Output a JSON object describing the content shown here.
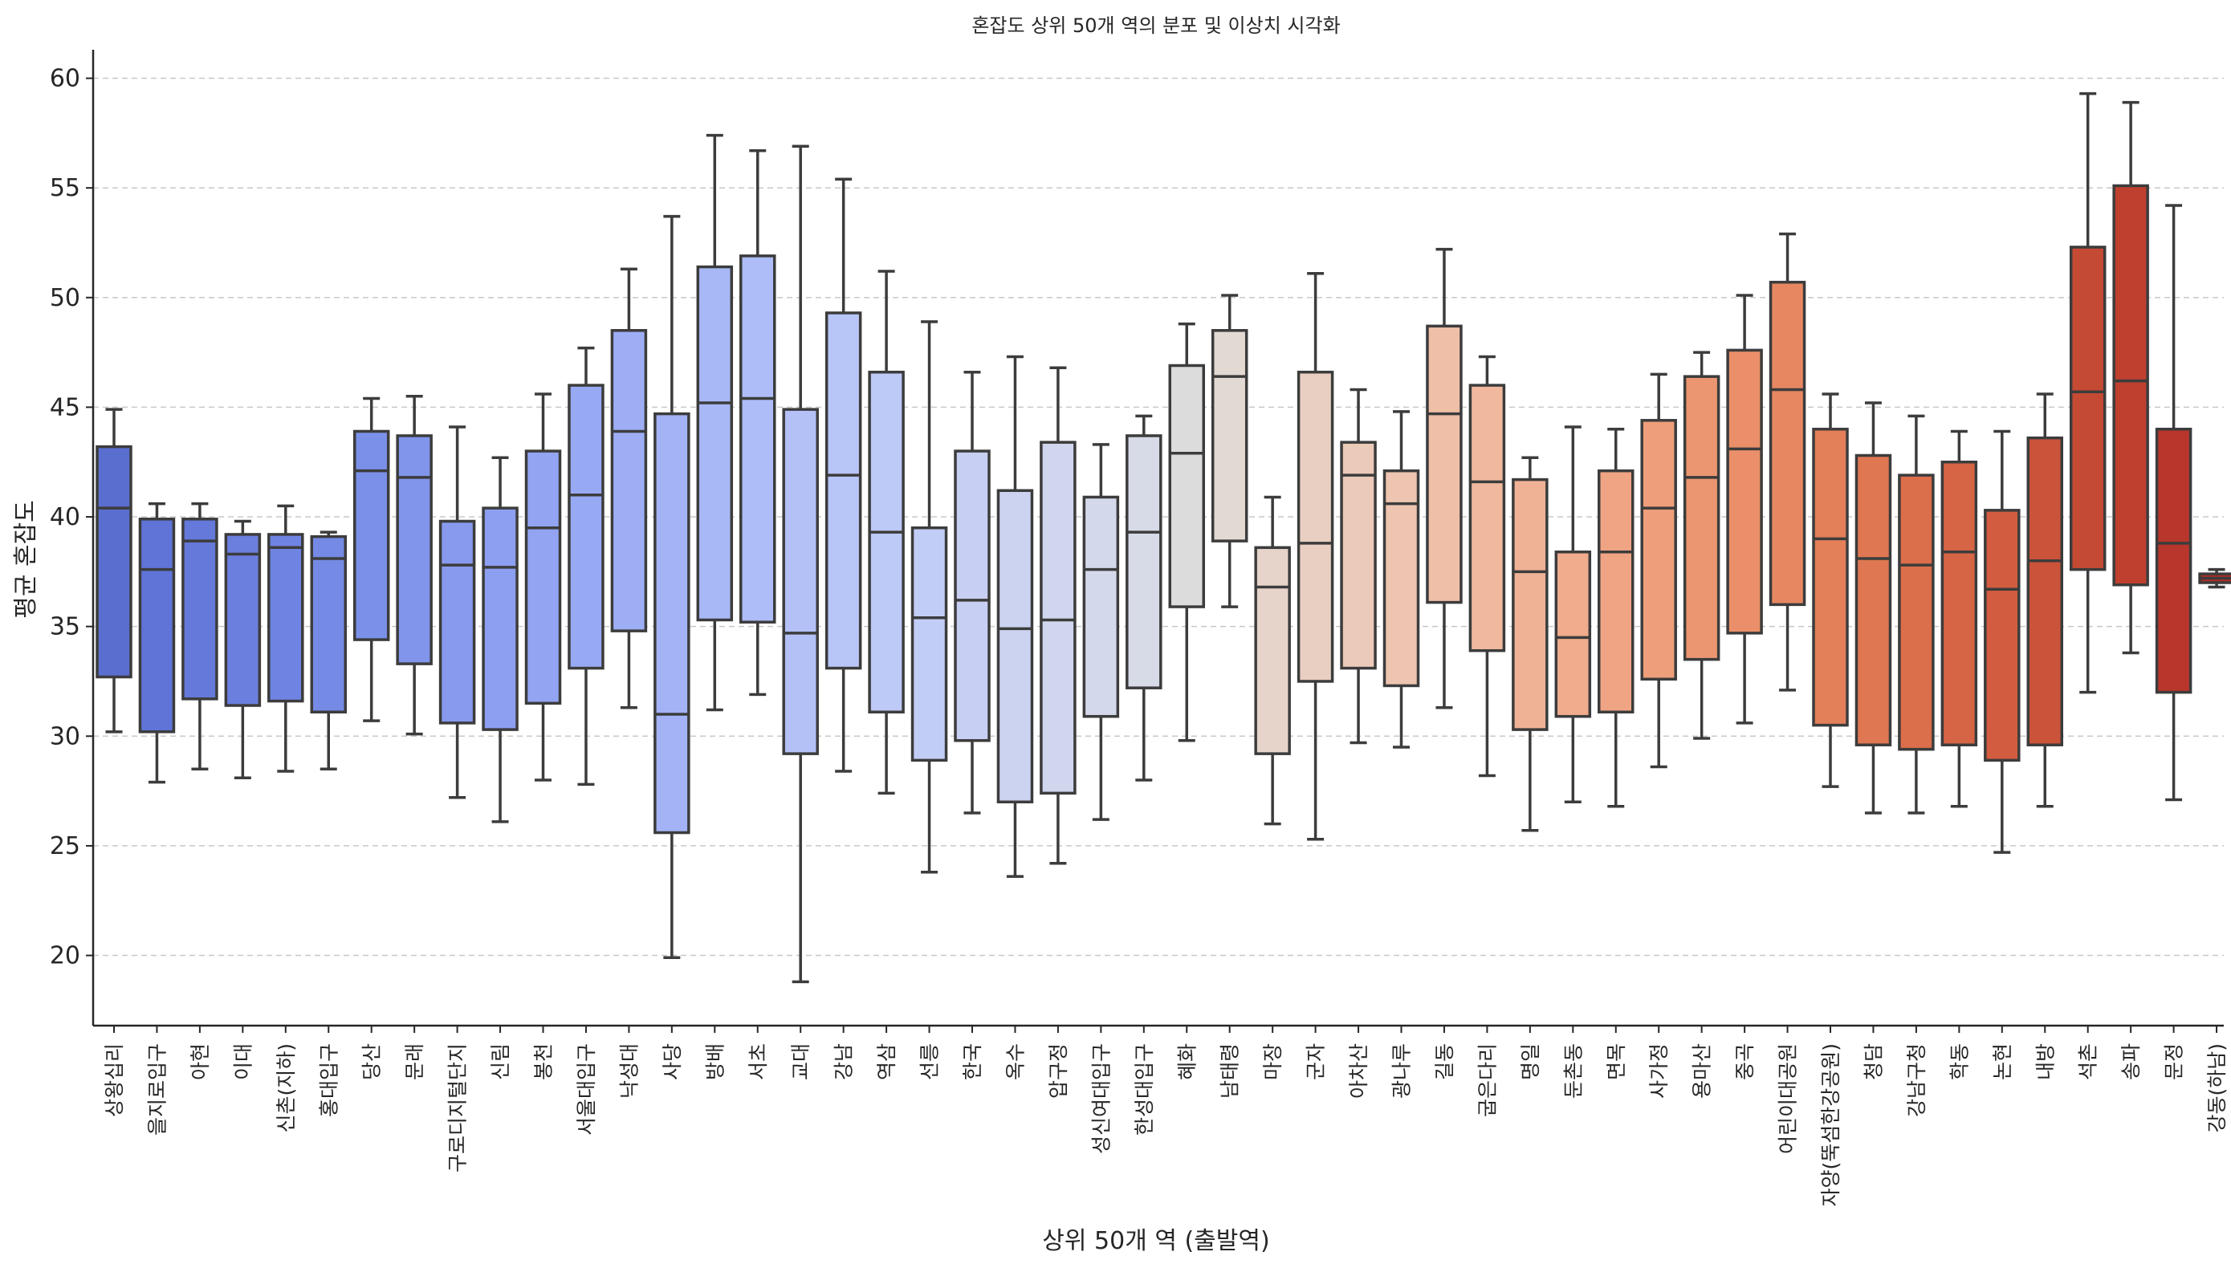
{
  "chart_data": {
    "type": "box",
    "title": "혼잡도 상위 50개 역의 분포 및 이상치 시각화",
    "xlabel": "상위 50개 역 (출발역)",
    "ylabel": "평균 혼잡도",
    "ylim": [
      16.8,
      61.3
    ],
    "yticks": [
      20,
      25,
      30,
      35,
      40,
      45,
      50,
      55,
      60
    ],
    "grid": "y-dashed",
    "palette": "coolwarm",
    "series": [
      {
        "name": "상왕십리",
        "whislo": 30.2,
        "q1": 32.7,
        "med": 40.4,
        "q3": 43.2,
        "whishi": 44.9,
        "color": "#5a6ed0"
      },
      {
        "name": "을지로입구",
        "whislo": 27.9,
        "q1": 30.2,
        "med": 37.6,
        "q3": 39.9,
        "whishi": 40.6,
        "color": "#5f74d6"
      },
      {
        "name": "아현",
        "whislo": 28.5,
        "q1": 31.7,
        "med": 38.9,
        "q3": 39.9,
        "whishi": 40.6,
        "color": "#6479da"
      },
      {
        "name": "이대",
        "whislo": 28.1,
        "q1": 31.4,
        "med": 38.3,
        "q3": 39.2,
        "whishi": 39.8,
        "color": "#6a7fde"
      },
      {
        "name": "신촌(지하)",
        "whislo": 28.4,
        "q1": 31.6,
        "med": 38.6,
        "q3": 39.2,
        "whishi": 40.5,
        "color": "#6f84e2"
      },
      {
        "name": "홍대입구",
        "whislo": 28.5,
        "q1": 31.1,
        "med": 38.1,
        "q3": 39.1,
        "whishi": 39.3,
        "color": "#758ae5"
      },
      {
        "name": "당산",
        "whislo": 30.7,
        "q1": 34.4,
        "med": 42.1,
        "q3": 43.9,
        "whishi": 45.4,
        "color": "#7b90e8"
      },
      {
        "name": "문래",
        "whislo": 30.1,
        "q1": 33.3,
        "med": 41.8,
        "q3": 43.7,
        "whishi": 45.5,
        "color": "#8195eb"
      },
      {
        "name": "구로디지털단지",
        "whislo": 27.2,
        "q1": 30.6,
        "med": 37.8,
        "q3": 39.8,
        "whishi": 44.1,
        "color": "#879aee"
      },
      {
        "name": "신림",
        "whislo": 26.1,
        "q1": 30.3,
        "med": 37.7,
        "q3": 40.4,
        "whishi": 42.7,
        "color": "#8c9ff0"
      },
      {
        "name": "봉천",
        "whislo": 28.0,
        "q1": 31.5,
        "med": 39.5,
        "q3": 43.0,
        "whishi": 45.6,
        "color": "#92a4f2"
      },
      {
        "name": "서울대입구",
        "whislo": 27.8,
        "q1": 33.1,
        "med": 41.0,
        "q3": 46.0,
        "whishi": 47.7,
        "color": "#98a9f4"
      },
      {
        "name": "낙성대",
        "whislo": 31.3,
        "q1": 34.8,
        "med": 43.9,
        "q3": 48.5,
        "whishi": 51.3,
        "color": "#9daef5"
      },
      {
        "name": "사당",
        "whislo": 19.9,
        "q1": 25.6,
        "med": 31.0,
        "q3": 44.7,
        "whishi": 53.7,
        "color": "#a3b3f6"
      },
      {
        "name": "방배",
        "whislo": 31.2,
        "q1": 35.3,
        "med": 45.2,
        "q3": 51.4,
        "whishi": 57.4,
        "color": "#a8b8f7"
      },
      {
        "name": "서초",
        "whislo": 31.9,
        "q1": 35.2,
        "med": 45.4,
        "q3": 51.9,
        "whishi": 56.7,
        "color": "#aebdf7"
      },
      {
        "name": "교대",
        "whislo": 18.8,
        "q1": 29.2,
        "med": 34.7,
        "q3": 44.9,
        "whishi": 56.9,
        "color": "#b3c1f7"
      },
      {
        "name": "강남",
        "whislo": 28.4,
        "q1": 33.1,
        "med": 41.9,
        "q3": 49.3,
        "whishi": 55.4,
        "color": "#b8c5f7"
      },
      {
        "name": "역삼",
        "whislo": 27.4,
        "q1": 31.1,
        "med": 39.3,
        "q3": 46.6,
        "whishi": 51.2,
        "color": "#bdc9f6"
      },
      {
        "name": "선릉",
        "whislo": 23.8,
        "q1": 28.9,
        "med": 35.4,
        "q3": 39.5,
        "whishi": 48.9,
        "color": "#c2cdf5"
      },
      {
        "name": "한국",
        "whislo": 26.5,
        "q1": 29.8,
        "med": 36.2,
        "q3": 43.0,
        "whishi": 46.6,
        "color": "#c7d0f3"
      },
      {
        "name": "옥수",
        "whislo": 23.6,
        "q1": 27.0,
        "med": 34.9,
        "q3": 41.2,
        "whishi": 47.3,
        "color": "#cbd3f1"
      },
      {
        "name": "압구정",
        "whislo": 24.2,
        "q1": 27.4,
        "med": 35.3,
        "q3": 43.4,
        "whishi": 46.8,
        "color": "#cfd6ee"
      },
      {
        "name": "성신여대입구",
        "whislo": 26.2,
        "q1": 30.9,
        "med": 37.6,
        "q3": 40.9,
        "whishi": 43.3,
        "color": "#d3d8eb"
      },
      {
        "name": "한성대입구",
        "whislo": 28.0,
        "q1": 32.2,
        "med": 39.3,
        "q3": 43.7,
        "whishi": 44.6,
        "color": "#d7dae7"
      },
      {
        "name": "혜화",
        "whislo": 29.8,
        "q1": 35.9,
        "med": 42.9,
        "q3": 46.9,
        "whishi": 48.8,
        "color": "#dddcdc"
      },
      {
        "name": "남태령",
        "whislo": 35.9,
        "q1": 38.9,
        "med": 46.4,
        "q3": 48.5,
        "whishi": 50.1,
        "color": "#e3d9d3"
      },
      {
        "name": "마장",
        "whislo": 26.0,
        "q1": 29.2,
        "med": 36.8,
        "q3": 38.6,
        "whishi": 40.9,
        "color": "#e6d4cb"
      },
      {
        "name": "군자",
        "whislo": 25.3,
        "q1": 32.5,
        "med": 38.8,
        "q3": 46.6,
        "whishi": 51.1,
        "color": "#e9cfc2"
      },
      {
        "name": "아차산",
        "whislo": 29.7,
        "q1": 33.1,
        "med": 41.9,
        "q3": 43.4,
        "whishi": 45.8,
        "color": "#ebcab9"
      },
      {
        "name": "광나루",
        "whislo": 29.5,
        "q1": 32.3,
        "med": 40.6,
        "q3": 42.1,
        "whishi": 44.8,
        "color": "#edc5b0"
      },
      {
        "name": "길동",
        "whislo": 31.3,
        "q1": 36.1,
        "med": 44.7,
        "q3": 48.7,
        "whishi": 52.2,
        "color": "#efbfa7"
      },
      {
        "name": "굽은다리",
        "whislo": 28.2,
        "q1": 33.9,
        "med": 41.6,
        "q3": 46.0,
        "whishi": 47.3,
        "color": "#f0b99e"
      },
      {
        "name": "명일",
        "whislo": 25.7,
        "q1": 30.3,
        "med": 37.5,
        "q3": 41.7,
        "whishi": 42.7,
        "color": "#f0b295"
      },
      {
        "name": "둔촌동",
        "whislo": 27.0,
        "q1": 30.9,
        "med": 34.5,
        "q3": 38.4,
        "whishi": 44.1,
        "color": "#f0ac8c"
      },
      {
        "name": "면목",
        "whislo": 26.8,
        "q1": 31.1,
        "med": 38.4,
        "q3": 42.1,
        "whishi": 44.0,
        "color": "#efa583"
      },
      {
        "name": "사가정",
        "whislo": 28.6,
        "q1": 32.6,
        "med": 40.4,
        "q3": 44.4,
        "whishi": 46.5,
        "color": "#ee9e7a"
      },
      {
        "name": "용마산",
        "whislo": 29.9,
        "q1": 33.5,
        "med": 41.8,
        "q3": 46.4,
        "whishi": 47.5,
        "color": "#ec9671"
      },
      {
        "name": "중곡",
        "whislo": 30.6,
        "q1": 34.7,
        "med": 43.1,
        "q3": 47.6,
        "whishi": 50.1,
        "color": "#ea8f69"
      },
      {
        "name": "어린이대공원",
        "whislo": 32.1,
        "q1": 36.0,
        "med": 45.8,
        "q3": 50.7,
        "whishi": 52.9,
        "color": "#e78761"
      },
      {
        "name": "자양(뚝섬한강공원)",
        "whislo": 27.7,
        "q1": 30.5,
        "med": 39.0,
        "q3": 44.0,
        "whishi": 45.6,
        "color": "#e37f59"
      },
      {
        "name": "청담",
        "whislo": 26.5,
        "q1": 29.6,
        "med": 38.1,
        "q3": 42.8,
        "whishi": 45.2,
        "color": "#df7752"
      },
      {
        "name": "강남구청",
        "whislo": 26.5,
        "q1": 29.4,
        "med": 37.8,
        "q3": 41.9,
        "whishi": 44.6,
        "color": "#db6e4b"
      },
      {
        "name": "학동",
        "whislo": 26.8,
        "q1": 29.6,
        "med": 38.4,
        "q3": 42.5,
        "whishi": 43.9,
        "color": "#d66545"
      },
      {
        "name": "논현",
        "whislo": 24.7,
        "q1": 28.9,
        "med": 36.7,
        "q3": 40.3,
        "whishi": 43.9,
        "color": "#d15c3f"
      },
      {
        "name": "내방",
        "whislo": 26.8,
        "q1": 29.6,
        "med": 38.0,
        "q3": 43.6,
        "whishi": 45.6,
        "color": "#cb5339"
      },
      {
        "name": "석촌",
        "whislo": 32.0,
        "q1": 37.6,
        "med": 45.7,
        "q3": 52.3,
        "whishi": 59.3,
        "color": "#c54a34"
      },
      {
        "name": "송파",
        "whislo": 33.8,
        "q1": 36.9,
        "med": 46.2,
        "q3": 55.1,
        "whishi": 58.9,
        "color": "#bf402f"
      },
      {
        "name": "문정",
        "whislo": 27.1,
        "q1": 32.0,
        "med": 38.8,
        "q3": 44.0,
        "whishi": 54.2,
        "color": "#b8362b"
      },
      {
        "name": "강동(하남)",
        "whislo": 36.8,
        "q1": 37.0,
        "med": 37.2,
        "q3": 37.4,
        "whishi": 37.6,
        "color": "#b02c27"
      }
    ]
  }
}
